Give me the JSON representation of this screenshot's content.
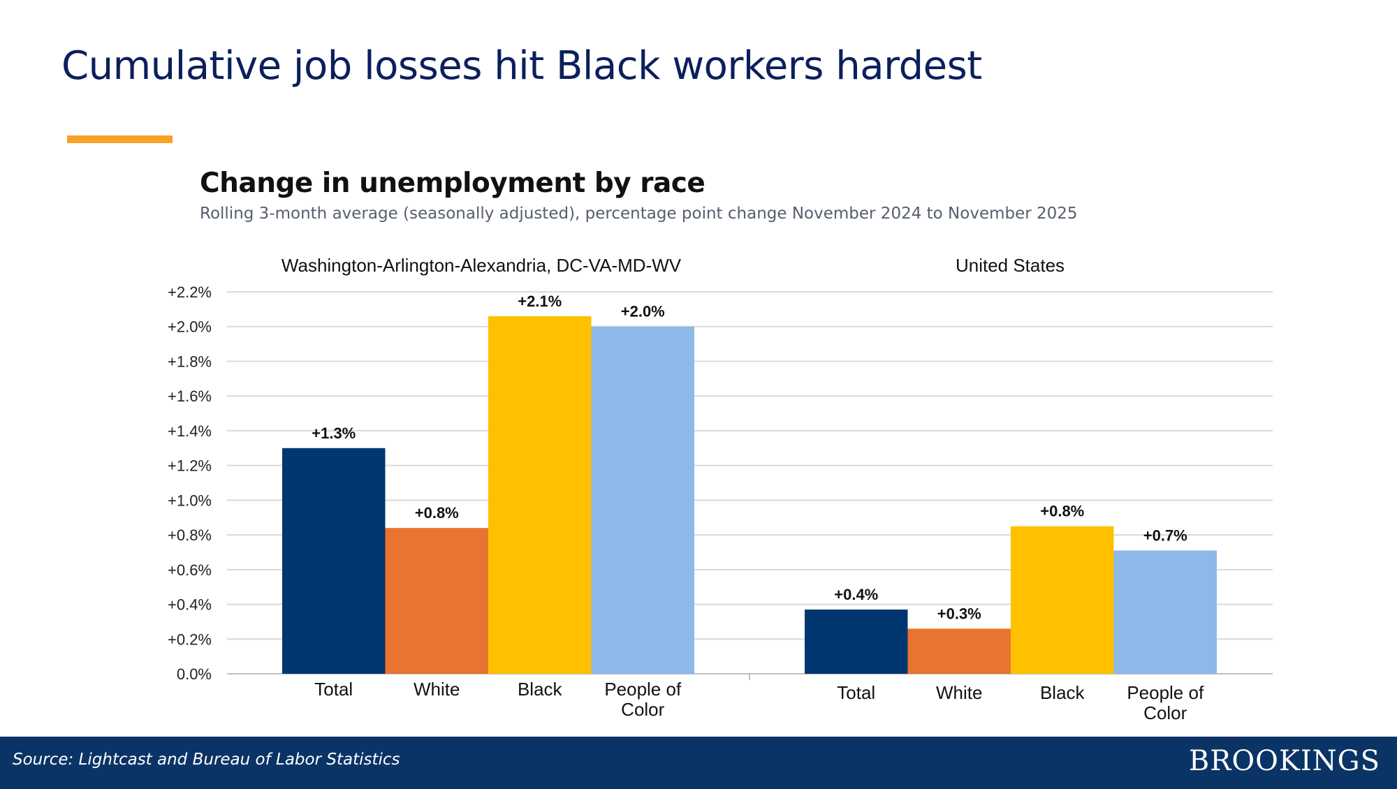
{
  "slide": {
    "title": "Cumulative job losses hit Black workers hardest",
    "accent_color": "#f7a226",
    "title_color": "#0b1f5c"
  },
  "chart_data": {
    "type": "bar",
    "title": "Change in unemployment by race",
    "subtitle": "Rolling 3-month average (seasonally adjusted), percentage point change November 2024 to November 2025",
    "ylim": [
      0,
      2.2
    ],
    "yticks": [
      0.0,
      0.2,
      0.4,
      0.6,
      0.8,
      1.0,
      1.2,
      1.4,
      1.6,
      1.8,
      2.0,
      2.2
    ],
    "ytick_labels": [
      "0.0%",
      "+0.2%",
      "+0.4%",
      "+0.6%",
      "+0.8%",
      "+1.0%",
      "+1.2%",
      "+1.4%",
      "+1.6%",
      "+1.8%",
      "+2.0%",
      "+2.2%"
    ],
    "grid": true,
    "categories": [
      "Total",
      "White",
      "Black",
      "People of Color"
    ],
    "category_lines": [
      [
        "Total"
      ],
      [
        "White"
      ],
      [
        "Black"
      ],
      [
        "People of",
        "Color"
      ]
    ],
    "colors": [
      "#003770",
      "#e97331",
      "#ffc000",
      "#8eb8e8"
    ],
    "panels": [
      {
        "name": "Washington-Arlington-Alexandria, DC-VA-MD-WV",
        "values": [
          1.3,
          0.84,
          2.06,
          2.0
        ],
        "labels": [
          "+1.3%",
          "+0.8%",
          "+2.1%",
          "+2.0%"
        ]
      },
      {
        "name": "United States",
        "values": [
          0.37,
          0.26,
          0.85,
          0.71
        ],
        "labels": [
          "+0.4%",
          "+0.3%",
          "+0.8%",
          "+0.7%"
        ]
      }
    ]
  },
  "footer": {
    "source": "Source: Lightcast and Bureau of Labor Statistics",
    "logo": "BROOKINGS",
    "background": "#0b3466"
  }
}
